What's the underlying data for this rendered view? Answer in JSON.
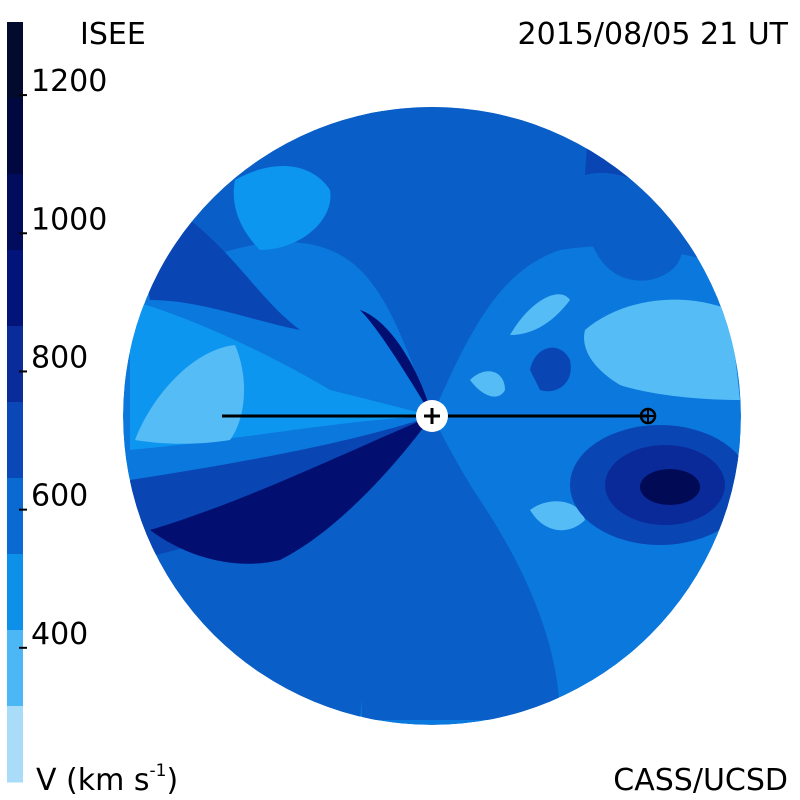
{
  "header": {
    "left_title": "ISEE",
    "right_title": "2015/08/05 21 UT"
  },
  "footer": {
    "left_label": "V (km s",
    "left_label_exp": "-1",
    "left_label_close": ")",
    "right_label": "CASS/UCSD"
  },
  "chart_data": {
    "type": "heatmap",
    "colorbar": {
      "ticks": [
        1200,
        1000,
        800,
        600,
        400
      ],
      "range": [
        200,
        1300
      ],
      "bands": [
        {
          "color": "#020b2e"
        },
        {
          "color": "#01083f"
        },
        {
          "color": "#010d5c"
        },
        {
          "color": "#021479"
        },
        {
          "color": "#0a2c9a"
        },
        {
          "color": "#0a48b8"
        },
        {
          "color": "#0a6ad2"
        },
        {
          "color": "#0d90ea"
        },
        {
          "color": "#4cb7f4"
        },
        {
          "color": "#a9dcf8"
        }
      ]
    },
    "markers": {
      "sun": "sun-icon",
      "earth": "earth-icon"
    },
    "colors": {
      "v300": "#55bcf5",
      "v400": "#0d96f0",
      "v500": "#0a78dc",
      "v600": "#0a5ec8",
      "v700": "#0a45b4",
      "v800": "#0a2a9a",
      "v900": "#020f70",
      "v1000": "#010a55"
    }
  }
}
